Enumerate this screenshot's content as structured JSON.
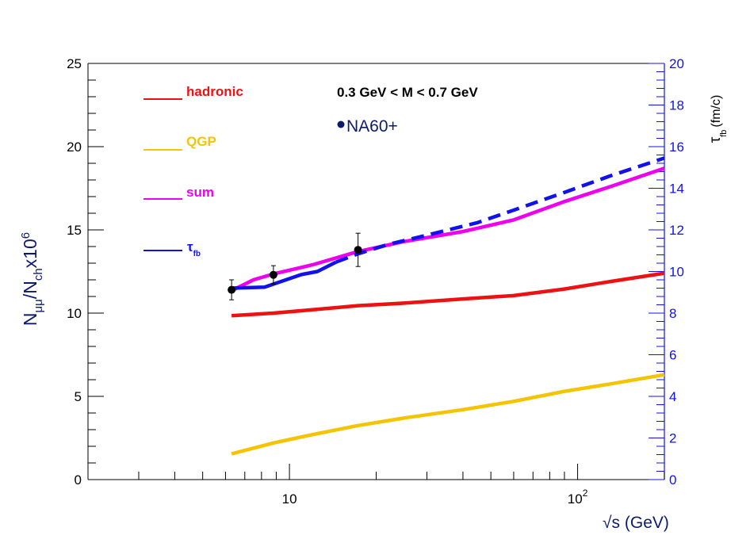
{
  "chart_data": {
    "type": "line",
    "annotation": "0.3 GeV < M < 0.7 GeV",
    "xlabel": "√s (GeV)",
    "ylabel_left": {
      "base": "N",
      "sub1": "μμ",
      "mid": "/N",
      "sub2": "ch",
      "mid2": "x10",
      "sup": "6"
    },
    "ylabel_right": {
      "tau": "τ",
      "sub": "fb",
      "unit": "(fm/c)"
    },
    "x_axis": {
      "scale": "log",
      "range": [
        2.0,
        200.0
      ],
      "tick_labels": [
        "10",
        "10"
      ],
      "tick_label_exp": [
        "",
        "2"
      ]
    },
    "y_left": {
      "range": [
        0,
        25
      ],
      "tick_labels": [
        "0",
        "5",
        "10",
        "15",
        "20",
        "25"
      ]
    },
    "y_right": {
      "range": [
        0,
        20
      ],
      "tick_labels": [
        "0",
        "2",
        "4",
        "6",
        "8",
        "10",
        "12",
        "14",
        "16",
        "18",
        "20"
      ]
    },
    "legend": [
      {
        "label": "hadronic",
        "color": "#ee1111"
      },
      {
        "label": "QGP",
        "color": "#f5c400"
      },
      {
        "label": "sum",
        "color": "#ee00ee"
      },
      {
        "label": "τ",
        "sub": "fb",
        "color": "#1111ee"
      }
    ],
    "series": [
      {
        "name": "hadronic",
        "color": "#ee1111",
        "axis": "left",
        "points": [
          [
            6.3,
            9.85
          ],
          [
            8.8,
            10.0
          ],
          [
            12,
            10.2
          ],
          [
            17.3,
            10.45
          ],
          [
            25,
            10.6
          ],
          [
            40,
            10.85
          ],
          [
            60,
            11.05
          ],
          [
            90,
            11.45
          ],
          [
            130,
            11.9
          ],
          [
            200,
            12.4
          ]
        ]
      },
      {
        "name": "QGP",
        "color": "#f5c400",
        "axis": "left",
        "points": [
          [
            6.3,
            1.55
          ],
          [
            8.8,
            2.2
          ],
          [
            12,
            2.7
          ],
          [
            17.3,
            3.25
          ],
          [
            25,
            3.7
          ],
          [
            40,
            4.2
          ],
          [
            60,
            4.7
          ],
          [
            90,
            5.3
          ],
          [
            130,
            5.75
          ],
          [
            200,
            6.3
          ]
        ]
      },
      {
        "name": "sum",
        "color": "#ee00ee",
        "axis": "left",
        "points": [
          [
            6.3,
            11.35
          ],
          [
            7.5,
            12.0
          ],
          [
            8.8,
            12.35
          ],
          [
            12,
            12.9
          ],
          [
            17.3,
            13.7
          ],
          [
            25,
            14.3
          ],
          [
            40,
            14.9
          ],
          [
            60,
            15.6
          ],
          [
            90,
            16.7
          ],
          [
            130,
            17.6
          ],
          [
            200,
            18.7
          ]
        ]
      },
      {
        "name": "τfb (solid)",
        "color": "#1111ee",
        "axis": "right",
        "dashed": false,
        "points": [
          [
            6.3,
            9.2
          ],
          [
            8.2,
            9.25
          ],
          [
            9.5,
            9.55
          ],
          [
            11,
            9.85
          ],
          [
            12.5,
            10.0
          ],
          [
            14.5,
            10.45
          ]
        ]
      },
      {
        "name": "τfb (dashed)",
        "color": "#1111ee",
        "axis": "right",
        "dashed": true,
        "points": [
          [
            14.5,
            10.45
          ],
          [
            17.3,
            10.85
          ],
          [
            22,
            11.3
          ],
          [
            30,
            11.75
          ],
          [
            45,
            12.35
          ],
          [
            60,
            12.95
          ],
          [
            90,
            13.8
          ],
          [
            130,
            14.6
          ],
          [
            200,
            15.45
          ]
        ]
      }
    ],
    "datapoints": {
      "name": "NA60+",
      "color": "#000000",
      "points": [
        {
          "x": 6.3,
          "y": 11.4,
          "err": 0.6
        },
        {
          "x": 8.8,
          "y": 12.3,
          "err": 0.55
        },
        {
          "x": 17.3,
          "y": 13.8,
          "err": 1.0
        }
      ]
    }
  }
}
